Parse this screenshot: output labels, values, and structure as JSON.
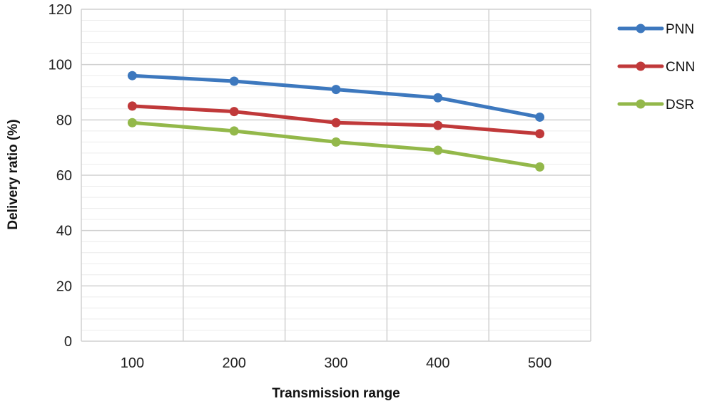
{
  "chart_data": {
    "type": "line",
    "title": "",
    "xlabel": "Transmission  range",
    "ylabel": "Delivery ratio (%)",
    "x": [
      100,
      200,
      300,
      400,
      500
    ],
    "xtick_labels": [
      "100",
      "200",
      "300",
      "400",
      "500"
    ],
    "ylim": [
      0,
      120
    ],
    "yticks": [
      0,
      20,
      40,
      60,
      80,
      100,
      120
    ],
    "ytick_labels": [
      "0",
      "20",
      "40",
      "60",
      "80",
      "100",
      "120"
    ],
    "grid": true,
    "legend_position": "right",
    "series": [
      {
        "name": "PNN",
        "color": "#3d78be",
        "values": [
          96,
          94,
          91,
          88,
          81
        ]
      },
      {
        "name": "CNN",
        "color": "#c0393a",
        "values": [
          85,
          83,
          79,
          78,
          75
        ]
      },
      {
        "name": "DSR",
        "color": "#93b84a",
        "values": [
          79,
          76,
          72,
          69,
          63
        ]
      }
    ]
  }
}
